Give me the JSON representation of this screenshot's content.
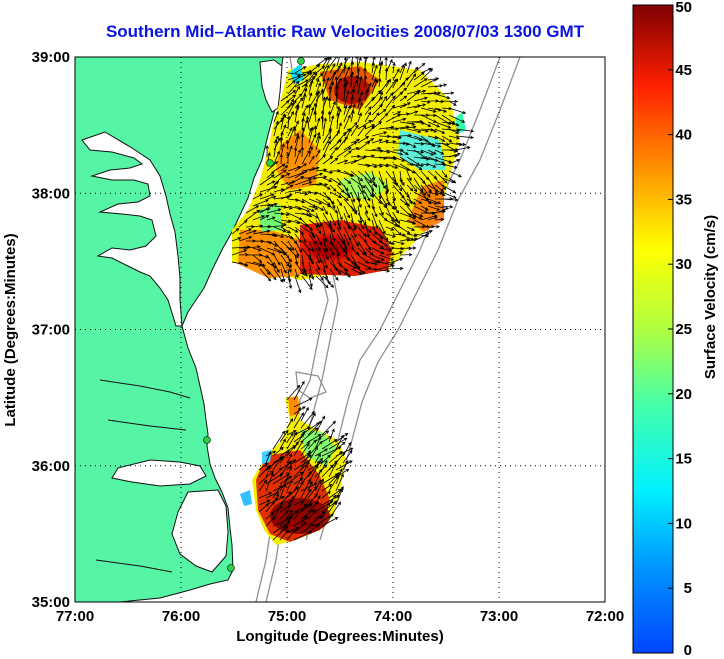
{
  "title": "Southern Mid–Atlantic Raw Velocities 2008/07/03 1300 GMT",
  "map": {
    "xlabel": "Longitude (Degrees:Minutes)",
    "ylabel": "Latitude (Degrees:Minutes)",
    "lon_range": [
      -77,
      -72
    ],
    "lat_range": [
      35,
      39
    ],
    "lon_ticks": [
      {
        "value": -77,
        "label": "77:00"
      },
      {
        "value": -76,
        "label": "76:00"
      },
      {
        "value": -75,
        "label": "75:00"
      },
      {
        "value": -74,
        "label": "74:00"
      },
      {
        "value": -73,
        "label": "73:00"
      },
      {
        "value": -72,
        "label": "72:00"
      }
    ],
    "lat_ticks": [
      {
        "value": 39,
        "label": "39:00"
      },
      {
        "value": 38,
        "label": "38:00"
      },
      {
        "value": 37,
        "label": "37:00"
      },
      {
        "value": 36,
        "label": "36:00"
      },
      {
        "value": 35,
        "label": "35:00"
      }
    ],
    "grid": "dotted",
    "land_color": "#55f5a5",
    "colors": {
      "slow": "#0a6cff",
      "medium": "#2cff90",
      "moderate": "#f5f000",
      "fast": "#ff8000",
      "very_fast": "#d20000",
      "max": "#7f0000"
    }
  },
  "colorbar": {
    "label": "Surface Velocity (cm/s)",
    "range": [
      0,
      50
    ],
    "ticks": [
      "0",
      "5",
      "10",
      "15",
      "20",
      "25",
      "30",
      "35",
      "40",
      "45",
      "50"
    ]
  }
}
